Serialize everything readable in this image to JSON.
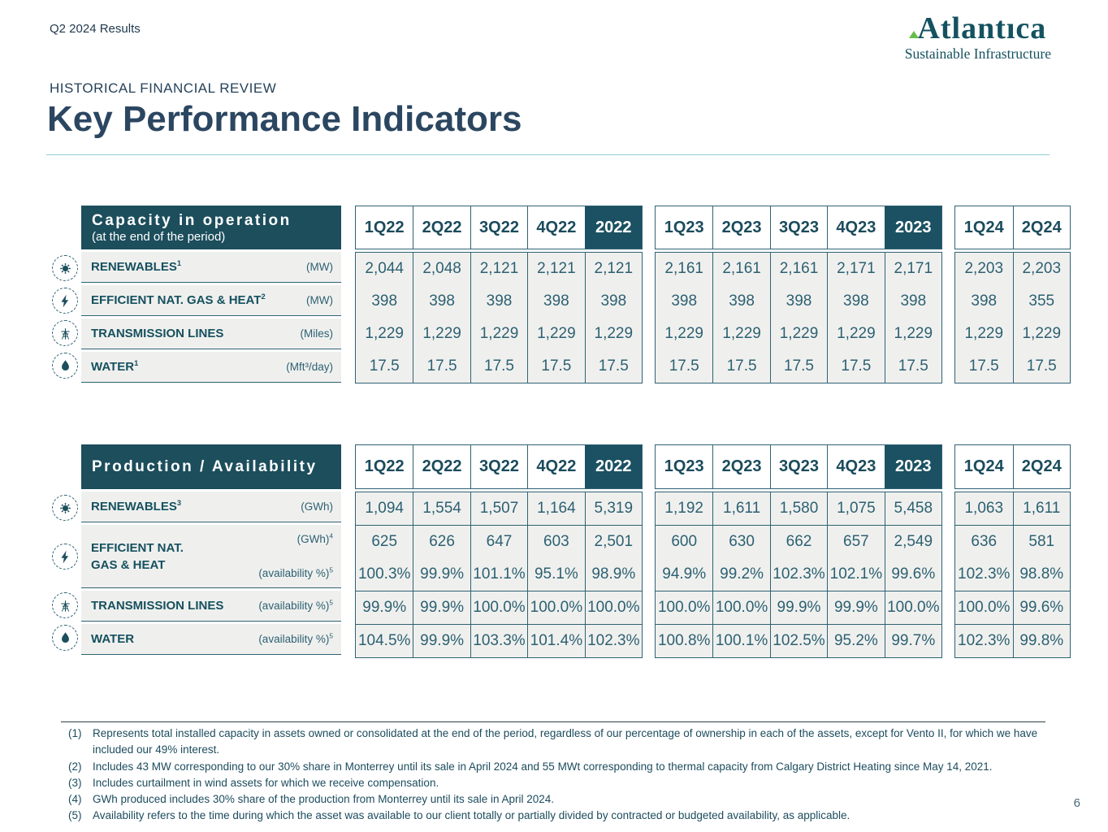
{
  "meta": {
    "eyebrow": "Q2 2024 Results",
    "section": "HISTORICAL FINANCIAL REVIEW",
    "title": "Key Performance Indicators",
    "page_number": "6"
  },
  "logo": {
    "name": "Atlantıca",
    "tagline": "Sustainable Infrastructure",
    "accent_green": "#67BD4A",
    "brand_teal": "#14525F"
  },
  "colors": {
    "teal_dark": "#1C4E5C",
    "teal_highlight": "#1B5162",
    "teal_text": "#2D6072",
    "row_bg": "#EFF0EE",
    "border_teal": "#2F6274",
    "title_navy": "#2B4660"
  },
  "periods": {
    "groups": [
      {
        "quarters": [
          "1Q22",
          "2Q22",
          "3Q22",
          "4Q22"
        ],
        "total": "2022"
      },
      {
        "quarters": [
          "1Q23",
          "2Q23",
          "3Q23",
          "4Q23"
        ],
        "total": "2023"
      },
      {
        "quarters": [
          "1Q24",
          "2Q24"
        ],
        "total": null
      }
    ]
  },
  "capacity": {
    "title": "Capacity in operation",
    "subtitle": "(at the end of the period)",
    "rows": [
      {
        "icon": "renewables-sun-icon",
        "label": "RENEWABLES",
        "label_sup": "1",
        "lines": [
          {
            "unit": "(MW)",
            "unit_sup": "",
            "values": [
              [
                "2,044",
                "2,048",
                "2,121",
                "2,121",
                "2,121"
              ],
              [
                "2,161",
                "2,161",
                "2,161",
                "2,171",
                "2,171"
              ],
              [
                "2,203",
                "2,203"
              ]
            ]
          }
        ]
      },
      {
        "icon": "lightning-bolt-icon",
        "label": "EFFICIENT NAT. GAS & HEAT",
        "label_sup": "2",
        "lines": [
          {
            "unit": "(MW)",
            "unit_sup": "",
            "values": [
              [
                "398",
                "398",
                "398",
                "398",
                "398"
              ],
              [
                "398",
                "398",
                "398",
                "398",
                "398"
              ],
              [
                "398",
                "355"
              ]
            ]
          }
        ]
      },
      {
        "icon": "transmission-tower-icon",
        "label": "TRANSMISSION LINES",
        "label_sup": "",
        "lines": [
          {
            "unit": "(Miles)",
            "unit_sup": "",
            "values": [
              [
                "1,229",
                "1,229",
                "1,229",
                "1,229",
                "1,229"
              ],
              [
                "1,229",
                "1,229",
                "1,229",
                "1,229",
                "1,229"
              ],
              [
                "1,229",
                "1,229"
              ]
            ]
          }
        ]
      },
      {
        "icon": "water-drop-icon",
        "label": "WATER",
        "label_sup": "1",
        "lines": [
          {
            "unit": "(Mft³/day)",
            "unit_sup": "",
            "values": [
              [
                "17.5",
                "17.5",
                "17.5",
                "17.5",
                "17.5"
              ],
              [
                "17.5",
                "17.5",
                "17.5",
                "17.5",
                "17.5"
              ],
              [
                "17.5",
                "17.5"
              ]
            ]
          }
        ]
      }
    ]
  },
  "production": {
    "title": "Production / Availability",
    "rows": [
      {
        "icon": "renewables-sun-icon",
        "label": "RENEWABLES",
        "label_sup": "3",
        "lines": [
          {
            "unit": "(GWh)",
            "unit_sup": "",
            "values": [
              [
                "1,094",
                "1,554",
                "1,507",
                "1,164",
                "5,319"
              ],
              [
                "1,192",
                "1,611",
                "1,580",
                "1,075",
                "5,458"
              ],
              [
                "1,063",
                "1,611"
              ]
            ]
          }
        ]
      },
      {
        "icon": "lightning-bolt-icon",
        "label": "EFFICIENT NAT.\nGAS & HEAT",
        "label_sup": "",
        "lines": [
          {
            "unit": "(GWh)",
            "unit_sup": "4",
            "values": [
              [
                "625",
                "626",
                "647",
                "603",
                "2,501"
              ],
              [
                "600",
                "630",
                "662",
                "657",
                "2,549"
              ],
              [
                "636",
                "581"
              ]
            ]
          },
          {
            "unit": "(availability %)",
            "unit_sup": "5",
            "values": [
              [
                "100.3%",
                "99.9%",
                "101.1%",
                "95.1%",
                "98.9%"
              ],
              [
                "94.9%",
                "99.2%",
                "102.3%",
                "102.1%",
                "99.6%"
              ],
              [
                "102.3%",
                "98.8%"
              ]
            ]
          }
        ]
      },
      {
        "icon": "transmission-tower-icon",
        "label": "TRANSMISSION LINES",
        "label_sup": "",
        "lines": [
          {
            "unit": "(availability %)",
            "unit_sup": "5",
            "values": [
              [
                "99.9%",
                "99.9%",
                "100.0%",
                "100.0%",
                "100.0%"
              ],
              [
                "100.0%",
                "100.0%",
                "99.9%",
                "99.9%",
                "100.0%"
              ],
              [
                "100.0%",
                "99.6%"
              ]
            ]
          }
        ]
      },
      {
        "icon": "water-drop-icon",
        "label": "WATER",
        "label_sup": "",
        "lines": [
          {
            "unit": "(availability %)",
            "unit_sup": "5",
            "values": [
              [
                "104.5%",
                "99.9%",
                "103.3%",
                "101.4%",
                "102.3%"
              ],
              [
                "100.8%",
                "100.1%",
                "102.5%",
                "95.2%",
                "99.7%"
              ],
              [
                "102.3%",
                "99.8%"
              ]
            ]
          }
        ]
      }
    ]
  },
  "footnotes": [
    {
      "num": "(1)",
      "text": "Represents total installed capacity in assets owned or consolidated at the end of the period, regardless of our percentage of ownership in each of the assets, except for Vento II, for which we have included our 49% interest."
    },
    {
      "num": "(2)",
      "text": "Includes 43 MW corresponding to our 30% share in Monterrey until its sale in April 2024 and 55 MWt corresponding to thermal capacity from Calgary District Heating since May 14, 2021."
    },
    {
      "num": "(3)",
      "text": "Includes curtailment in wind assets for which we receive compensation."
    },
    {
      "num": "(4)",
      "text": "GWh produced includes 30% share of the production from Monterrey until its sale in April 2024."
    },
    {
      "num": "(5)",
      "text": "Availability refers to the time during which the asset was available to our client totally or partially divided by contracted or budgeted availability, as applicable."
    }
  ]
}
